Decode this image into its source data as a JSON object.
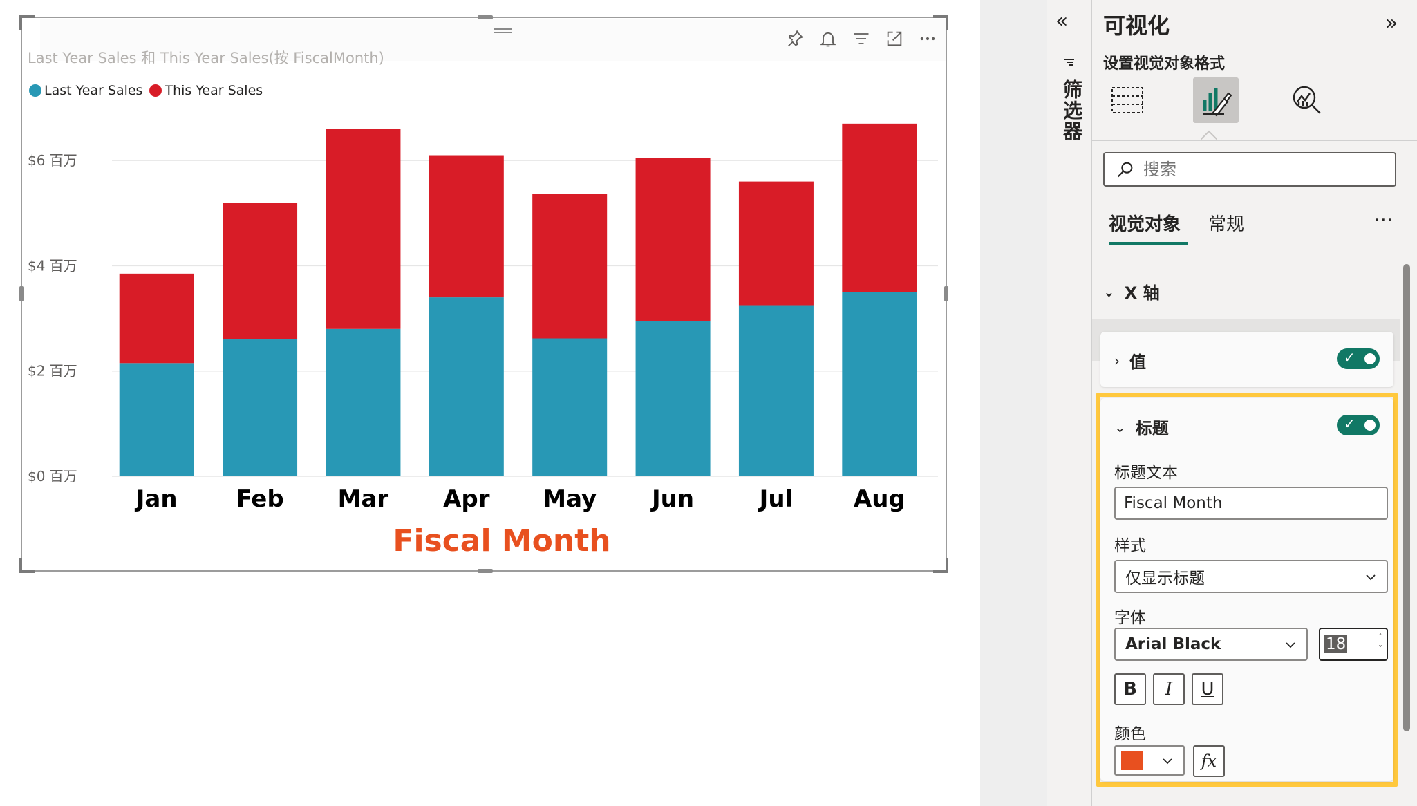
{
  "chart_data": {
    "type": "bar",
    "stacked": true,
    "title": "Last Year Sales 和 This Year Sales(按 FiscalMonth)",
    "xlabel": "Fiscal Month",
    "ylabel": "",
    "categories": [
      "Jan",
      "Feb",
      "Mar",
      "Apr",
      "May",
      "Jun",
      "Jul",
      "Aug"
    ],
    "series": [
      {
        "name": "Last Year Sales",
        "color": "#2898b5",
        "values": [
          2.15,
          2.6,
          2.8,
          3.4,
          2.62,
          2.95,
          3.25,
          3.5
        ]
      },
      {
        "name": "This Year Sales",
        "color": "#d81c27",
        "values": [
          1.7,
          2.6,
          3.8,
          2.7,
          2.75,
          3.1,
          2.35,
          3.2
        ]
      }
    ],
    "ylim": [
      0,
      7
    ],
    "yticks": [
      {
        "value": 0,
        "label": "$0 百万"
      },
      {
        "value": 2,
        "label": "$2 百万"
      },
      {
        "value": 4,
        "label": "$4 百万"
      },
      {
        "value": 6,
        "label": "$6 百万"
      }
    ],
    "xlabel_color": "#e8501f",
    "grid": true,
    "legend_position": "top-left"
  },
  "visual_header": {
    "icons": [
      "pin-icon",
      "bell-icon",
      "filter-icon",
      "focus-mode-icon",
      "more-options-icon"
    ]
  },
  "filters_pane": {
    "label": "筛选器",
    "expand_glyph": "«"
  },
  "viz_pane": {
    "title": "可视化",
    "collapse_glyph": "»",
    "format_heading": "设置视觉对象格式",
    "search_placeholder": "搜索",
    "sub_tabs": {
      "visual": "视觉对象",
      "general": "常规",
      "more": "···"
    },
    "x_axis": {
      "label": "X 轴"
    },
    "values_card": {
      "label": "值",
      "toggle_on": true
    },
    "title_card": {
      "label": "标题",
      "toggle_on": true,
      "title_text_label": "标题文本",
      "title_text_value": "Fiscal Month",
      "style_label": "样式",
      "style_value": "仅显示标题",
      "font_label": "字体",
      "font_value": "Arial Black",
      "font_size": "18",
      "bold": "B",
      "italic": "I",
      "underline": "U",
      "color_label": "颜色",
      "color_value": "#e8501f",
      "fx": "fx"
    },
    "accent_color": "#117865",
    "highlight_color": "#ffc83d"
  }
}
